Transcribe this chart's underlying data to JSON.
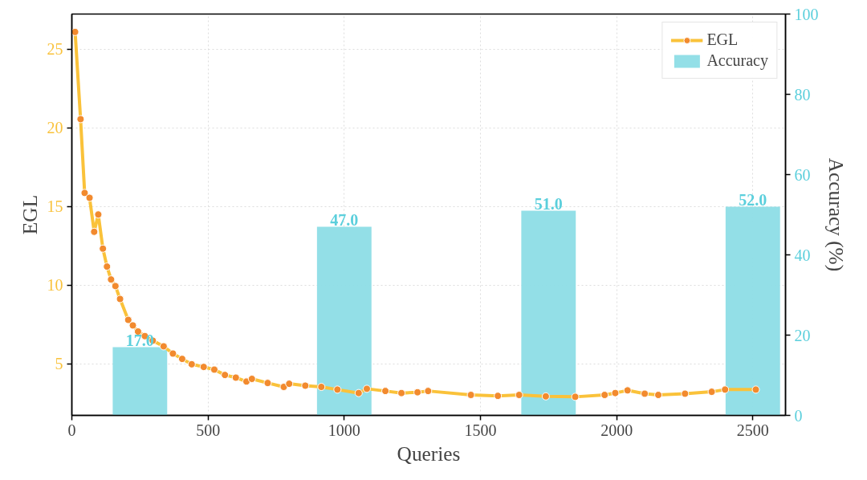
{
  "chart_data": {
    "type": "line",
    "xlabel": "Queries",
    "ylabel": "EGL",
    "y2label": "Accuracy (%)",
    "xlim": [
      0,
      2620
    ],
    "xticks": [
      0,
      500,
      1000,
      1500,
      2000,
      2500
    ],
    "ylim": [
      1.73,
      27.24
    ],
    "yticks": [
      5,
      10,
      15,
      20,
      25
    ],
    "y2lim": [
      0,
      100
    ],
    "y2ticks": [
      0,
      20,
      40,
      60,
      80,
      100
    ],
    "grid": true,
    "legend": "top right",
    "marker": "circle",
    "line_style": "solid",
    "series": [
      {
        "name": "EGL",
        "color": "#fac23a",
        "x": [
          12,
          32,
          47,
          65,
          82,
          97,
          114,
          129,
          144,
          160,
          177,
          207,
          224,
          243,
          268,
          297,
          337,
          371,
          405,
          440,
          484,
          523,
          562,
          602,
          641,
          661,
          719,
          778,
          798,
          857,
          916,
          975,
          1053,
          1083,
          1151,
          1210,
          1269,
          1308,
          1465,
          1564,
          1642,
          1740,
          1848,
          1956,
          1995,
          2040,
          2103,
          2153,
          2251,
          2349,
          2398,
          2511
        ],
        "values": [
          26.1,
          20.56,
          15.87,
          15.56,
          13.4,
          14.5,
          12.33,
          11.19,
          10.37,
          9.95,
          9.13,
          7.8,
          7.45,
          7.06,
          6.77,
          6.48,
          6.12,
          5.66,
          5.32,
          4.98,
          4.81,
          4.64,
          4.3,
          4.13,
          3.88,
          4.05,
          3.79,
          3.54,
          3.74,
          3.62,
          3.54,
          3.37,
          3.15,
          3.42,
          3.28,
          3.15,
          3.2,
          3.28,
          3.03,
          2.97,
          3.03,
          2.94,
          2.91,
          3.03,
          3.15,
          3.32,
          3.11,
          3.03,
          3.11,
          3.23,
          3.37,
          3.37
        ]
      },
      {
        "name": "Accuracy",
        "type": "bar",
        "axis": "y2",
        "color": "#8ddde6",
        "x": [
          250,
          1000,
          1750,
          2500
        ],
        "values": [
          17,
          47,
          51,
          52
        ],
        "value_labels": [
          "17.0",
          "47.0",
          "51.0",
          "52.0"
        ]
      }
    ]
  }
}
